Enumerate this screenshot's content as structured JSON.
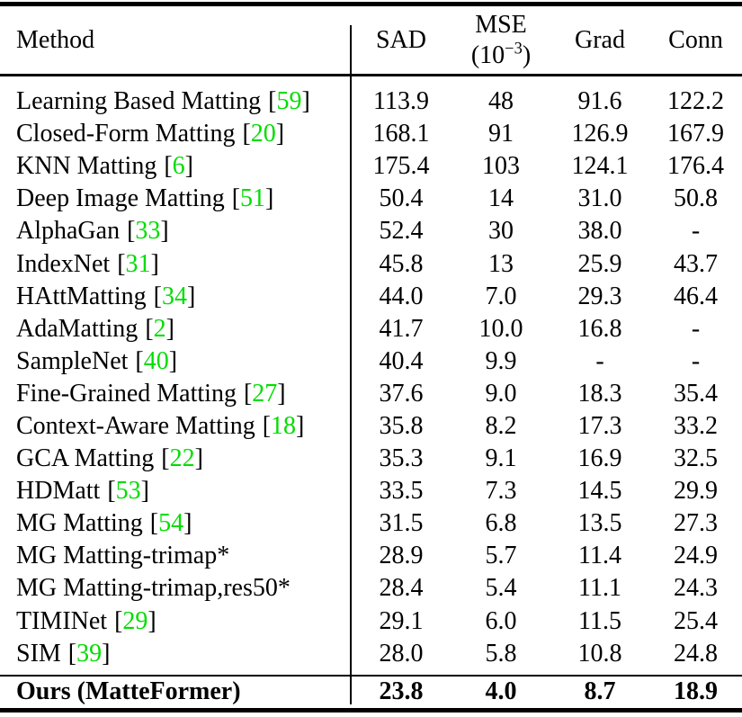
{
  "table_title": "matting-method-comparison",
  "colors": {
    "citation_green": "#00dd00",
    "text": "#000000",
    "rule": "#000000",
    "background": "#ffffff"
  },
  "header": {
    "method": "Method",
    "sad": "SAD",
    "mse_line1": "MSE",
    "mse_prefix": "(10",
    "mse_sup": "−3",
    "mse_suffix": ")",
    "grad": "Grad",
    "conn": "Conn"
  },
  "rows": [
    {
      "method": "Learning Based Matting",
      "cite": "59",
      "sad": "113.9",
      "mse": "48",
      "grad": "91.6",
      "conn": "122.2",
      "bold": false
    },
    {
      "method": "Closed-Form Matting",
      "cite": "20",
      "sad": "168.1",
      "mse": "91",
      "grad": "126.9",
      "conn": "167.9",
      "bold": false
    },
    {
      "method": "KNN Matting",
      "cite": "6",
      "sad": "175.4",
      "mse": "103",
      "grad": "124.1",
      "conn": "176.4",
      "bold": false
    },
    {
      "method": "Deep Image Matting",
      "cite": "51",
      "sad": "50.4",
      "mse": "14",
      "grad": "31.0",
      "conn": "50.8",
      "bold": false
    },
    {
      "method": "AlphaGan",
      "cite": "33",
      "sad": "52.4",
      "mse": "30",
      "grad": "38.0",
      "conn": "-",
      "bold": false
    },
    {
      "method": "IndexNet",
      "cite": "31",
      "sad": "45.8",
      "mse": "13",
      "grad": "25.9",
      "conn": "43.7",
      "bold": false
    },
    {
      "method": "HAttMatting",
      "cite": "34",
      "sad": "44.0",
      "mse": "7.0",
      "grad": "29.3",
      "conn": "46.4",
      "bold": false
    },
    {
      "method": "AdaMatting",
      "cite": "2",
      "sad": "41.7",
      "mse": "10.0",
      "grad": "16.8",
      "conn": "-",
      "bold": false
    },
    {
      "method": "SampleNet",
      "cite": "40",
      "sad": "40.4",
      "mse": "9.9",
      "grad": "-",
      "conn": "-",
      "bold": false
    },
    {
      "method": "Fine-Grained Matting",
      "cite": "27",
      "sad": "37.6",
      "mse": "9.0",
      "grad": "18.3",
      "conn": "35.4",
      "bold": false
    },
    {
      "method": "Context-Aware Matting",
      "cite": "18",
      "sad": "35.8",
      "mse": "8.2",
      "grad": "17.3",
      "conn": "33.2",
      "bold": false
    },
    {
      "method": "GCA Matting",
      "cite": "22",
      "sad": "35.3",
      "mse": "9.1",
      "grad": "16.9",
      "conn": "32.5",
      "bold": false
    },
    {
      "method": "HDMatt",
      "cite": "53",
      "sad": "33.5",
      "mse": "7.3",
      "grad": "14.5",
      "conn": "29.9",
      "bold": false
    },
    {
      "method": "MG Matting",
      "cite": "54",
      "sad": "31.5",
      "mse": "6.8",
      "grad": "13.5",
      "conn": "27.3",
      "bold": false
    },
    {
      "method": "MG Matting-trimap*",
      "cite": null,
      "sad": "28.9",
      "mse": "5.7",
      "grad": "11.4",
      "conn": "24.9",
      "bold": false
    },
    {
      "method": "MG Matting-trimap,res50*",
      "cite": null,
      "sad": "28.4",
      "mse": "5.4",
      "grad": "11.1",
      "conn": "24.3",
      "bold": false
    },
    {
      "method": "TIMINet",
      "cite": "29",
      "sad": "29.1",
      "mse": "6.0",
      "grad": "11.5",
      "conn": "25.4",
      "bold": false
    },
    {
      "method": "SIM",
      "cite": "39",
      "sad": "28.0",
      "mse": "5.8",
      "grad": "10.8",
      "conn": "24.8",
      "bold": false
    },
    {
      "method": "Ours (MatteFormer)",
      "cite": null,
      "sad": "23.8",
      "mse": "4.0",
      "grad": "8.7",
      "conn": "18.9",
      "bold": true
    }
  ]
}
